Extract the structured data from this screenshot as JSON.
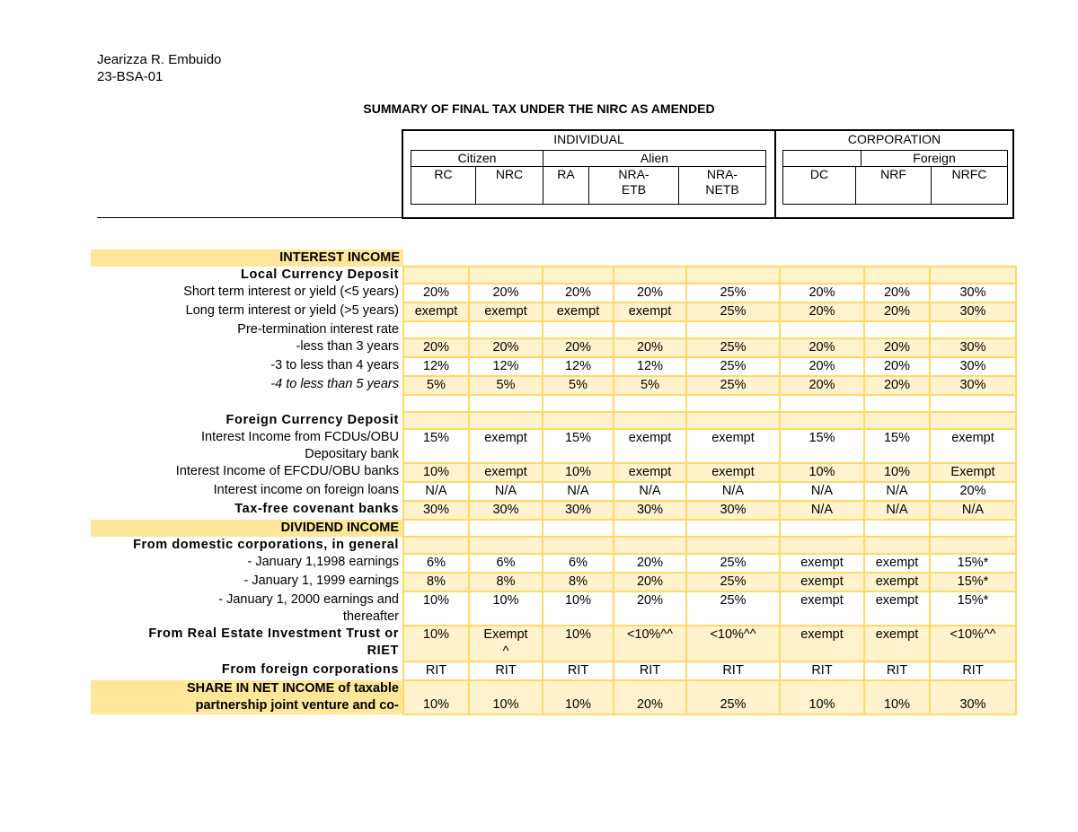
{
  "author": {
    "name": "Jearizza R. Embuido",
    "section": "23-BSA-01"
  },
  "title": "SUMMARY OF FINAL TAX UNDER THE NIRC AS AMENDED",
  "header": {
    "individual": "INDIVIDUAL",
    "citizen": "Citizen",
    "alien": "Alien",
    "corporation": "CORPORATION",
    "foreign": "Foreign",
    "columns": [
      "RC",
      "NRC",
      "RA",
      "NRA-\nETB",
      "NRA-\nNETB",
      "DC",
      "NRF",
      "NRFC"
    ]
  },
  "colors": {
    "border": "#ffd966",
    "shade": "#fff2cc",
    "section": "#ffe699"
  },
  "rows": [
    {
      "label": "INTEREST INCOME",
      "style": "section",
      "values": null
    },
    {
      "label": "Local Currency Deposit",
      "style": "bold",
      "values": [
        "",
        "",
        "",
        "",
        "",
        "",
        "",
        ""
      ]
    },
    {
      "label": "Short term interest or yield (<5 years)",
      "style": "normal",
      "values": [
        "20%",
        "20%",
        "20%",
        "20%",
        "25%",
        "20%",
        "20%",
        "30%"
      ]
    },
    {
      "label": "Long term interest or yield (>5 years) ",
      "style": "normal",
      "values": [
        "exempt",
        "exempt",
        "exempt",
        "exempt",
        "25%",
        "20%",
        "20%",
        "30%"
      ]
    },
    {
      "label": "Pre-termination interest rate",
      "style": "normal",
      "values": [
        "",
        "",
        "",
        "",
        "",
        "",
        "",
        ""
      ]
    },
    {
      "label": "-less than 3 years",
      "style": "normal",
      "values": [
        "20%",
        "20%",
        "20%",
        "20%",
        "25%",
        "20%",
        "20%",
        "30%"
      ]
    },
    {
      "label": "-3 to less than 4 years",
      "style": "normal",
      "values": [
        "12%",
        "12%",
        "12%",
        "12%",
        "25%",
        "20%",
        "20%",
        "30%"
      ]
    },
    {
      "label": "-4 to less than 5 years",
      "style": "italic",
      "values": [
        "5%",
        "5%",
        "5%",
        "5%",
        "25%",
        "20%",
        "20%",
        "30%"
      ]
    },
    {
      "label": "",
      "style": "normal",
      "values": [
        "",
        "",
        "",
        "",
        "",
        "",
        "",
        ""
      ]
    },
    {
      "label": "Foreign Currency Deposit",
      "style": "bold",
      "values": [
        "",
        "",
        "",
        "",
        "",
        "",
        "",
        ""
      ]
    },
    {
      "label": "Interest Income from FCDUs/OBU\nDepositary bank",
      "style": "normal",
      "values": [
        "15%",
        "exempt",
        "15%",
        "exempt",
        "exempt",
        "15%",
        "15%",
        "exempt"
      ]
    },
    {
      "label": "Interest Income of EFCDU/OBU banks",
      "style": "normal",
      "values": [
        "10%",
        "exempt",
        "10%",
        "exempt",
        "exempt",
        "10%",
        "10%",
        "Exempt"
      ]
    },
    {
      "label": "Interest income on foreign loans",
      "style": "normal",
      "values": [
        "N/A",
        "N/A",
        "N/A",
        "N/A",
        "N/A",
        "N/A",
        "N/A",
        "20%"
      ]
    },
    {
      "label": "Tax-free covenant banks",
      "style": "bold",
      "values": [
        "30%",
        "30%",
        "30%",
        "30%",
        "30%",
        "N/A",
        "N/A",
        "N/A"
      ]
    },
    {
      "label": "DIVIDEND INCOME",
      "style": "section",
      "values": [
        "",
        "",
        "",
        "",
        "",
        "",
        "",
        ""
      ]
    },
    {
      "label": "From domestic corporations, in general",
      "style": "bold",
      "values": [
        "",
        "",
        "",
        "",
        "",
        "",
        "",
        ""
      ]
    },
    {
      "label": "-     January 1,1998 earnings",
      "style": "normal",
      "values": [
        "6%",
        "6%",
        "6%",
        "20%",
        "25%",
        "exempt",
        "exempt",
        "15%*"
      ]
    },
    {
      "label": "-     January 1, 1999 earnings",
      "style": "normal",
      "values": [
        "8%",
        "8%",
        "8%",
        "20%",
        "25%",
        "exempt",
        "exempt",
        "15%*"
      ]
    },
    {
      "label": "-     January 1, 2000 earnings and\nthereafter",
      "style": "normal",
      "values": [
        "10%",
        "10%",
        "10%",
        "20%",
        "25%",
        "exempt",
        "exempt",
        "15%*"
      ]
    },
    {
      "label": "From Real Estate Investment Trust or\nRIET",
      "style": "bold",
      "values": [
        "10%",
        "Exempt\n^",
        "10%",
        "<10%^^",
        "<10%^^",
        "exempt",
        "exempt",
        "<10%^^"
      ]
    },
    {
      "label": "From foreign corporations ",
      "style": "bold",
      "values": [
        "RIT",
        "RIT",
        "RIT",
        "RIT",
        "RIT",
        "RIT",
        "RIT",
        "RIT"
      ]
    },
    {
      "label": "SHARE IN NET INCOME of taxable\npartnership joint venture and co-",
      "style": "section",
      "valign": "bottom",
      "values": [
        "10%",
        "10%",
        "10%",
        "20%",
        "25%",
        "10%",
        "10%",
        "30%"
      ]
    }
  ]
}
